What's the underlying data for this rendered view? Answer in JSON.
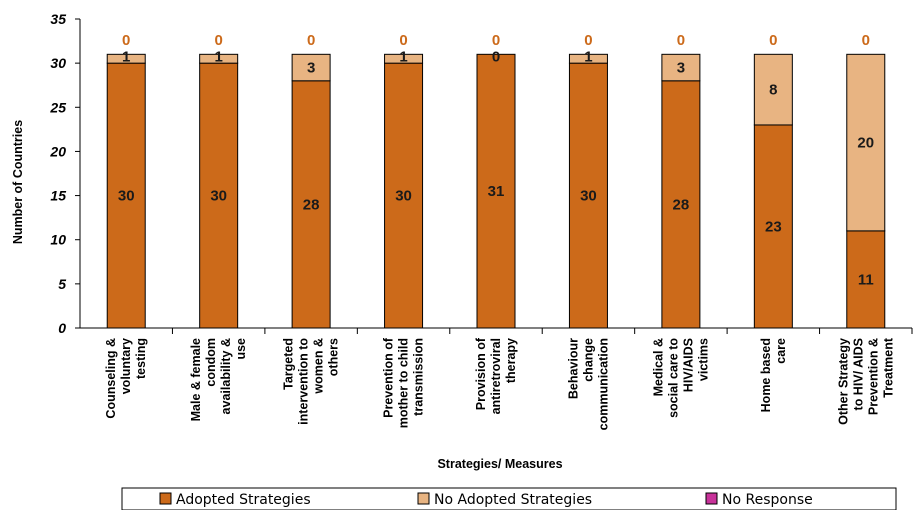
{
  "chart_data": {
    "type": "bar",
    "stacked": true,
    "categories": [
      [
        "Counseling &",
        "voluntary",
        "testing"
      ],
      [
        "Male & female",
        "condom",
        "availability &",
        "use"
      ],
      [
        "Targeted",
        "intervention to",
        "women &",
        "others"
      ],
      [
        "Prevention of",
        "mother to child",
        "transmission"
      ],
      [
        "Provision of",
        "antiretroviral",
        "therapy"
      ],
      [
        "Behaviour",
        "change",
        "communication"
      ],
      [
        "Medical &",
        "social care to",
        "HIV/AIDS",
        "victims"
      ],
      [
        "Home based",
        "care"
      ],
      [
        "Other Strategy",
        "to HIV/ AIDS",
        "Prevention &",
        "Treatment"
      ]
    ],
    "series": [
      {
        "name": "Adopted Strategies",
        "color": "#cc6a1a",
        "values": [
          30,
          30,
          28,
          30,
          31,
          30,
          28,
          23,
          11
        ]
      },
      {
        "name": "No Adopted Strategies",
        "color": "#e8b482",
        "values": [
          1,
          1,
          3,
          1,
          0,
          1,
          3,
          8,
          20
        ]
      },
      {
        "name": "No Response",
        "color": "#c8329a",
        "values": [
          0,
          0,
          0,
          0,
          0,
          0,
          0,
          0,
          0
        ]
      }
    ],
    "xlabel": "Strategies/ Measures",
    "ylabel": "Number of Countries",
    "ylim": [
      0,
      35
    ],
    "yticks": [
      0,
      5,
      10,
      15,
      20,
      25,
      30,
      35
    ],
    "grid": false,
    "legend": "bottom",
    "top_label_color": "#cc6a1a"
  }
}
